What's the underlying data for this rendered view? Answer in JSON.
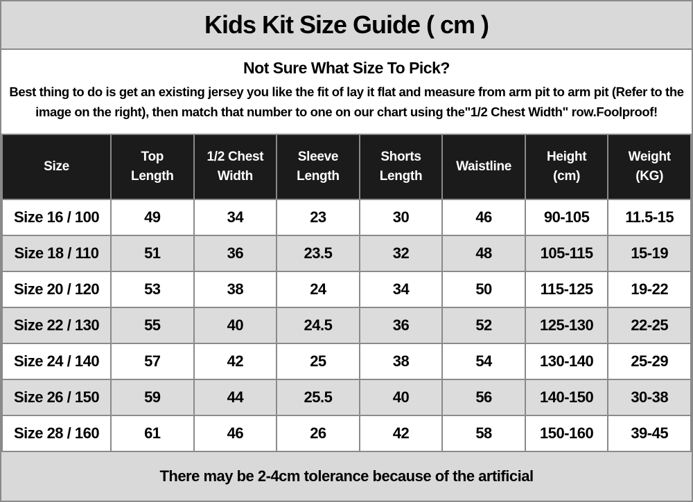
{
  "title": "Kids Kit Size Guide ( cm )",
  "info": {
    "heading": "Not Sure What Size To Pick?",
    "body": "Best thing to do is get an existing jersey you like the fit of lay it flat and measure from arm pit to arm pit (Refer to the image on the right), then match that number to one on our chart using the\"1/2 Chest Width\" row.Foolproof!"
  },
  "table": {
    "columns": [
      "Size",
      "Top\nLength",
      "1/2 Chest\nWidth",
      "Sleeve\nLength",
      "Shorts\nLength",
      "Waistline",
      "Height\n(cm)",
      "Weight\n(KG)"
    ],
    "rows": [
      [
        "Size 16 / 100",
        "49",
        "34",
        "23",
        "30",
        "46",
        "90-105",
        "11.5-15"
      ],
      [
        "Size 18 / 110",
        "51",
        "36",
        "23.5",
        "32",
        "48",
        "105-115",
        "15-19"
      ],
      [
        "Size 20 / 120",
        "53",
        "38",
        "24",
        "34",
        "50",
        "115-125",
        "19-22"
      ],
      [
        "Size 22 / 130",
        "55",
        "40",
        "24.5",
        "36",
        "52",
        "125-130",
        "22-25"
      ],
      [
        "Size 24 / 140",
        "57",
        "42",
        "25",
        "38",
        "54",
        "130-140",
        "25-29"
      ],
      [
        "Size 26 / 150",
        "59",
        "44",
        "25.5",
        "40",
        "56",
        "140-150",
        "30-38"
      ],
      [
        "Size 28 / 160",
        "61",
        "46",
        "26",
        "42",
        "58",
        "150-160",
        "39-45"
      ]
    ]
  },
  "footer": "There may be 2-4cm tolerance because of the artificial",
  "colors": {
    "band_gray": "#d9d9d9",
    "header_black": "#1b1b1b",
    "border_gray": "#8a8a8a",
    "row_alt_gray": "#dcdcdc",
    "text_black": "#000000",
    "header_text": "#ffffff"
  }
}
